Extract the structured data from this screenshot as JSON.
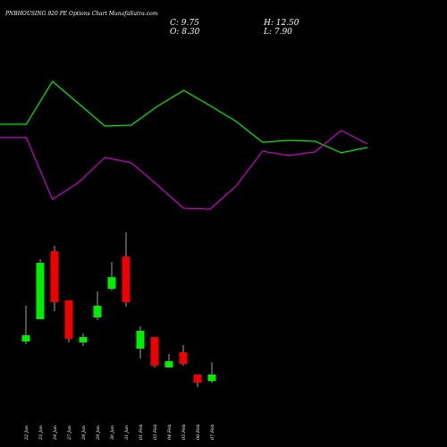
{
  "chart_data": [
    {
      "type": "line",
      "title": "PNBHOUSING 920 PE Options Chart MunafaSutra.com",
      "stats": [
        "C: 9.75",
        "O: 8.30",
        "H: 12.50",
        "L: 7.90"
      ],
      "ylim": [
        0,
        100
      ],
      "series": [
        {
          "color": "#00ee00",
          "values": [
            65.3,
            65.3,
            93.5,
            78.8,
            64.1,
            64.7,
            77.1,
            87.6,
            77.6,
            67.1,
            53.5,
            54.7,
            54.1,
            46.5,
            50
          ]
        },
        {
          "color": "#cc00cc",
          "values": [
            56.5,
            56.5,
            15.9,
            27.1,
            43.5,
            40,
            25.3,
            10,
            9.4,
            24.7,
            47.6,
            44.7,
            47.1,
            61.2,
            52.4
          ]
        }
      ]
    },
    {
      "type": "candlestick",
      "categories": [
        "22 Jan",
        "23 Jan",
        "24 Jan",
        "27 Jan",
        "28 Jan",
        "29 Jan",
        "30 Jan",
        "31 Jan",
        "01 Feb",
        "03 Feb",
        "04 Feb",
        "05 Feb",
        "06 Feb",
        "07 Feb"
      ],
      "open": [
        17.15,
        22.15,
        37.35,
        26.35,
        16.95,
        22.55,
        28.95,
        36.15,
        15.55,
        18.15,
        11.35,
        14.75,
        9.75,
        8.3
      ],
      "high": [
        25.15,
        35.55,
        38.55,
        26.35,
        18.95,
        28.35,
        34.95,
        41.55,
        20.55,
        18.15,
        14.35,
        16.35,
        9.75,
        12.5
      ],
      "low": [
        16.55,
        22.15,
        23.95,
        16.95,
        16.15,
        21.95,
        28.55,
        24.95,
        13.35,
        11.35,
        11.35,
        11.75,
        6.95,
        7.9
      ],
      "close": [
        18.55,
        34.75,
        25.95,
        17.75,
        18.15,
        25.15,
        31.55,
        25.95,
        19.55,
        11.75,
        12.75,
        12.15,
        7.95,
        9.75
      ],
      "up_color": "#00ee00",
      "down_color": "#ee0000",
      "ylim": [
        5,
        45
      ]
    }
  ]
}
